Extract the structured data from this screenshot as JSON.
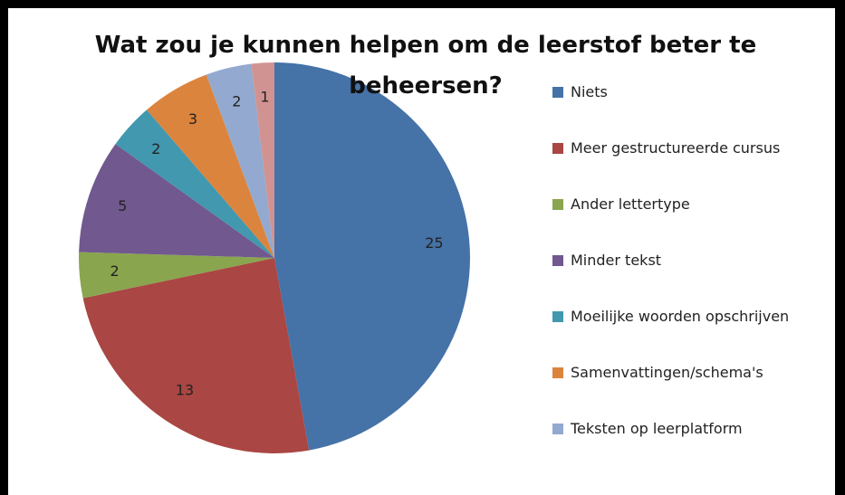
{
  "chart_data": {
    "type": "pie",
    "title": "Wat zou je kunnen helpen om de leerstof beter te beheersen?",
    "categories": [
      "Niets",
      "Meer gestructureerde cursus",
      "Ander lettertype",
      "Minder tekst",
      "Moeilijke woorden opschrijven",
      "Samenvattingen/schema's",
      "Teksten op leerplatform",
      null
    ],
    "values": [
      25,
      13,
      2,
      5,
      2,
      3,
      2,
      1
    ],
    "colors": [
      "#4572a7",
      "#aa4643",
      "#89a54e",
      "#71588f",
      "#4198af",
      "#db843d",
      "#93a9cf",
      "#d19392"
    ],
    "legend": "right"
  }
}
